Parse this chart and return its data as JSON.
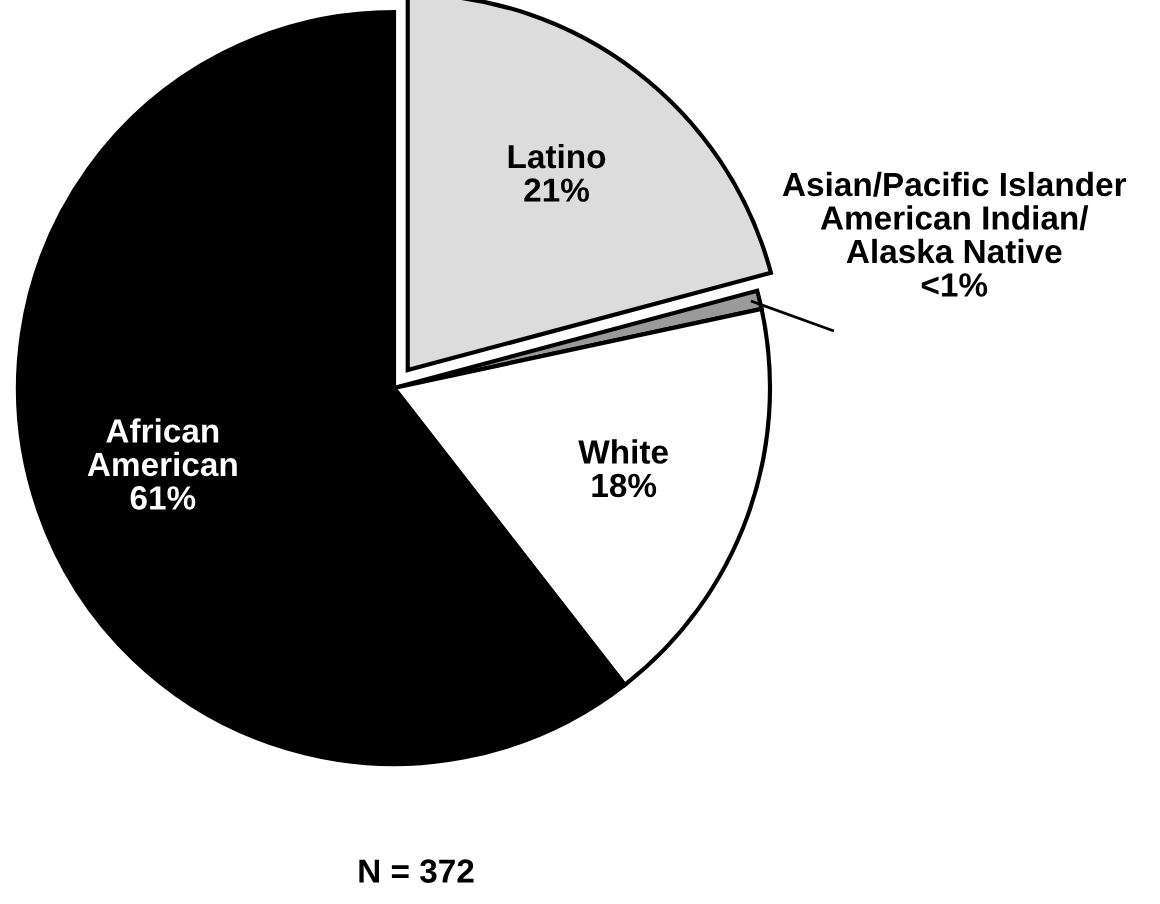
{
  "chart_data": {
    "type": "pie",
    "categories": [
      "Latino",
      "Asian/Pacific Islander\nAmerican Indian/\nAlaska Native",
      "White",
      "African\nAmerican"
    ],
    "values": [
      21,
      0.8,
      18,
      61
    ],
    "value_labels": [
      "21%",
      "<1%",
      "18%",
      "61%"
    ],
    "colors": [
      "#dcdcdc",
      "#9a9a9a",
      "#ffffff",
      "#000000"
    ],
    "annotations": [
      "N = 372"
    ]
  }
}
